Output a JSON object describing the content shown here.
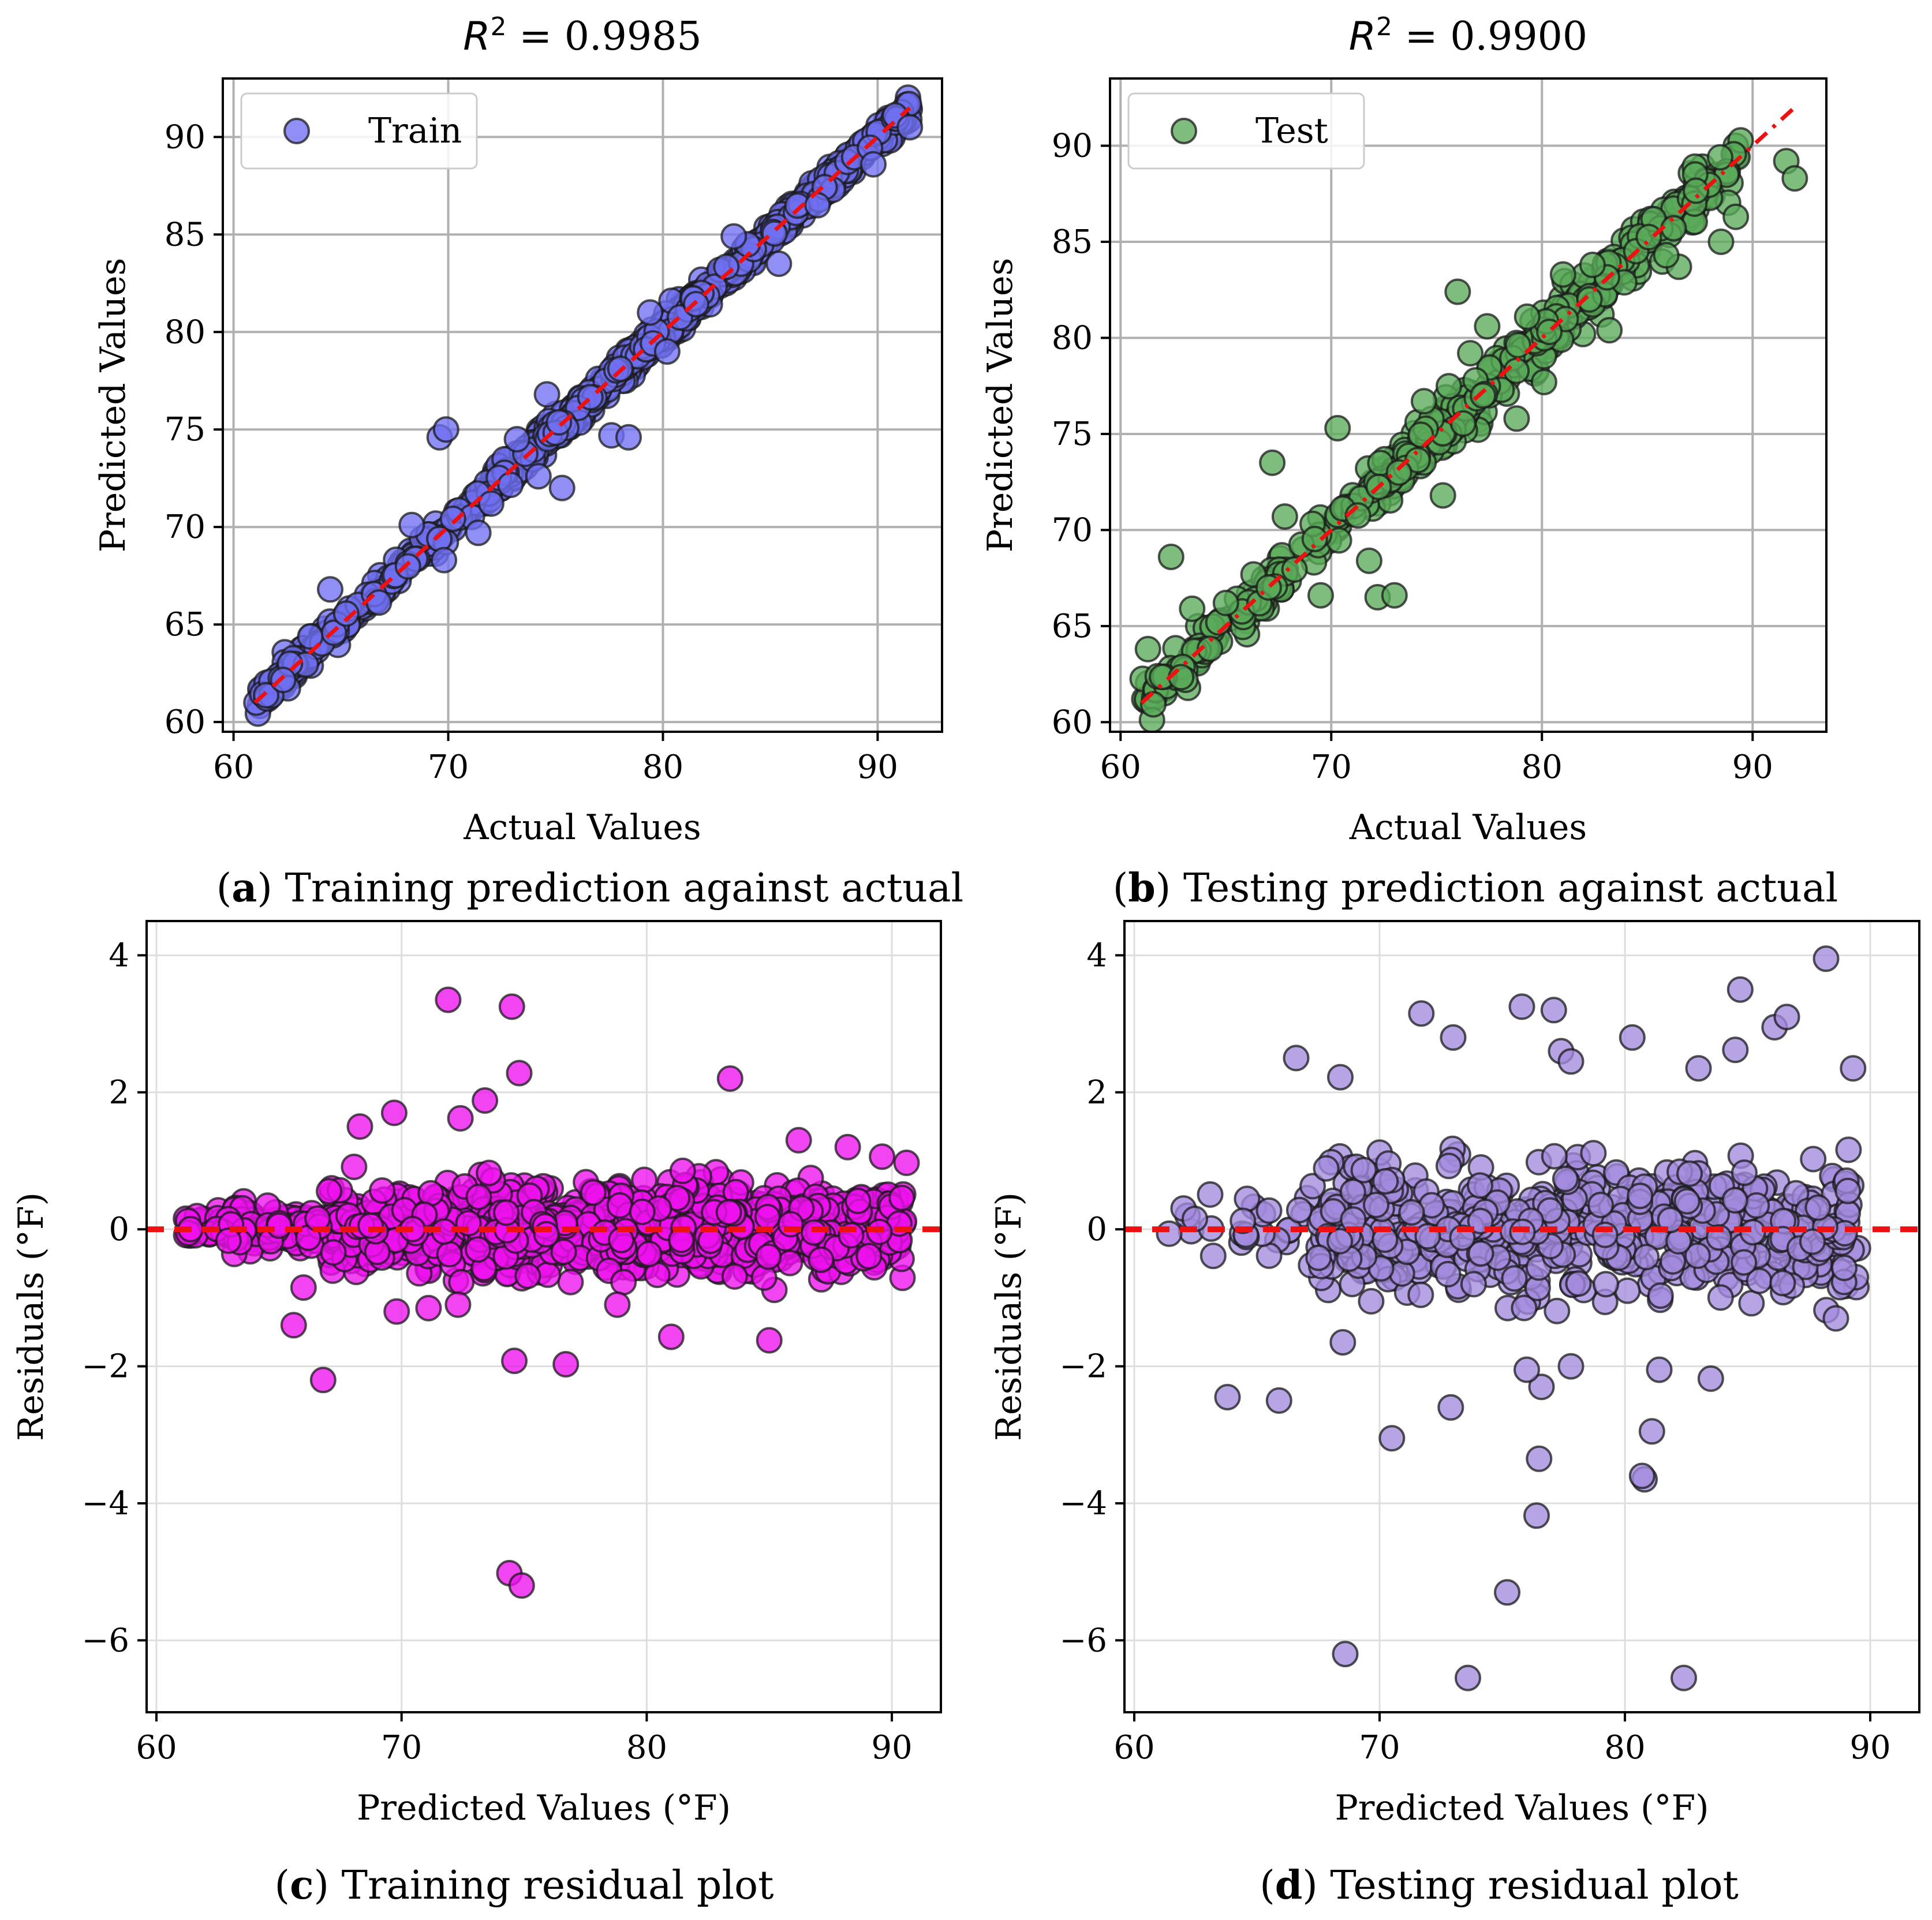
{
  "chart_data": [
    {
      "id": "a",
      "type": "scatter",
      "title": "R² = 0.9985",
      "title_prefix": "R",
      "title_suffix": " = 0.9985",
      "xlabel": "Actual Values",
      "ylabel": "Predicted Values",
      "xlim": [
        59.5,
        93
      ],
      "ylim": [
        59.5,
        93
      ],
      "xticks": [
        60,
        70,
        80,
        90
      ],
      "yticks": [
        60,
        65,
        70,
        75,
        80,
        85,
        90
      ],
      "grid": true,
      "legend": {
        "placement": "upper-left",
        "label": "Train"
      },
      "caption_letter": "a",
      "caption_text": " Training prediction against actual",
      "marker_color": "#6f6ff2",
      "series": [
        {
          "name": "Train",
          "mode": "parity",
          "seed": 11,
          "n": 950,
          "x_range": [
            61,
            91.5
          ],
          "noise": 0.32,
          "outliers": [
            [
              69.6,
              74.6
            ],
            [
              69.9,
              75
            ],
            [
              74.6,
              76.8
            ],
            [
              75.3,
              72
            ],
            [
              77.6,
              74.7
            ],
            [
              78.4,
              74.6
            ],
            [
              64.5,
              66.8
            ],
            [
              71.4,
              69.7
            ],
            [
              69.8,
              68.3
            ],
            [
              68.3,
              70.1
            ],
            [
              89.8,
              88.6
            ],
            [
              91.5,
              90.5
            ],
            [
              83.3,
              84.9
            ],
            [
              85.4,
              83.5
            ],
            [
              87.2,
              86.5
            ],
            [
              79.4,
              81
            ],
            [
              80.2,
              79
            ],
            [
              74.2,
              72.6
            ],
            [
              73.2,
              74.5
            ],
            [
              72,
              71.2
            ]
          ]
        }
      ],
      "reference_line": {
        "style": "dashed",
        "color": "#ee1111",
        "from": [
          61,
          61
        ],
        "to": [
          91.5,
          91.5
        ]
      }
    },
    {
      "id": "b",
      "type": "scatter",
      "title": "R² = 0.9900",
      "title_prefix": "R",
      "title_suffix": " = 0.9900",
      "xlabel": "Actual Values",
      "ylabel": "Predicted Values",
      "xlim": [
        59.5,
        93.5
      ],
      "ylim": [
        59.5,
        93.5
      ],
      "xticks": [
        60,
        70,
        80,
        90
      ],
      "yticks": [
        60,
        65,
        70,
        75,
        80,
        85,
        90
      ],
      "grid": true,
      "legend": {
        "placement": "upper-left",
        "label": "Test"
      },
      "caption_letter": "b",
      "caption_text": " Testing prediction against actual",
      "marker_color": "#5aaa5a",
      "series": [
        {
          "name": "Test",
          "mode": "parity",
          "seed": 23,
          "n": 520,
          "x_range": [
            61,
            89.5
          ],
          "noise": 0.6,
          "outliers": [
            [
              61.3,
              63.8
            ],
            [
              62.4,
              68.6
            ],
            [
              63.4,
              65.9
            ],
            [
              65,
              66.2
            ],
            [
              67.2,
              73.5
            ],
            [
              67.8,
              70.7
            ],
            [
              69.5,
              66.6
            ],
            [
              70.3,
              75.3
            ],
            [
              71.8,
              68.4
            ],
            [
              72.2,
              66.5
            ],
            [
              73,
              66.6
            ],
            [
              75.3,
              71.8
            ],
            [
              76,
              82.4
            ],
            [
              77.2,
              77
            ],
            [
              78.8,
              75.8
            ],
            [
              83.2,
              80.4
            ],
            [
              86.5,
              83.7
            ],
            [
              88.5,
              85
            ],
            [
              89.2,
              86.3
            ],
            [
              91.6,
              89.2
            ],
            [
              92,
              88.3
            ],
            [
              76.6,
              79.2
            ],
            [
              79.3,
              81.1
            ],
            [
              81,
              83.3
            ],
            [
              82.4,
              83.8
            ],
            [
              85.9,
              84.3
            ],
            [
              74.4,
              76.7
            ],
            [
              77.4,
              80.6
            ],
            [
              80.1,
              77.7
            ]
          ]
        }
      ],
      "reference_line": {
        "style": "dashdot",
        "color": "#ee1111",
        "from": [
          61,
          61
        ],
        "to": [
          92,
          92
        ]
      }
    },
    {
      "id": "c",
      "type": "scatter",
      "title": "",
      "xlabel": "Predicted Values (°F)",
      "ylabel": "Residuals (°F)",
      "xlim": [
        59.6,
        92
      ],
      "ylim": [
        -7.05,
        4.5
      ],
      "xticks": [
        60,
        70,
        80,
        90
      ],
      "yticks": [
        -6,
        -4,
        -2,
        0,
        2,
        4
      ],
      "grid": true,
      "caption_letter": "c",
      "caption_text": " Training residual plot",
      "marker_color": "#ee11ee",
      "series": [
        {
          "name": "",
          "mode": "residual",
          "seed": 37,
          "n": 1150,
          "x_range": [
            61,
            90.5
          ],
          "noise": 0.3,
          "outliers": [
            [
              71.9,
              3.35
            ],
            [
              74.5,
              3.25
            ],
            [
              74.8,
              2.28
            ],
            [
              73.4,
              1.88
            ],
            [
              72.4,
              1.62
            ],
            [
              69.7,
              1.7
            ],
            [
              68.3,
              1.5
            ],
            [
              83.4,
              2.2
            ],
            [
              86.2,
              1.3
            ],
            [
              88.2,
              1.2
            ],
            [
              89.6,
              1.06
            ],
            [
              90.6,
              0.97
            ],
            [
              66.8,
              -2.2
            ],
            [
              65.6,
              -1.4
            ],
            [
              66,
              -0.85
            ],
            [
              74.6,
              -1.92
            ],
            [
              76.7,
              -1.97
            ],
            [
              81,
              -1.57
            ],
            [
              85,
              -1.62
            ],
            [
              74.4,
              -5.02
            ],
            [
              74.9,
              -5.2
            ],
            [
              69.8,
              -1.2
            ],
            [
              71.1,
              -1.15
            ],
            [
              72.3,
              -1.1
            ],
            [
              78.8,
              -1.1
            ]
          ]
        }
      ],
      "reference_line": {
        "style": "dashed",
        "color": "#ee1111",
        "y": 0
      }
    },
    {
      "id": "d",
      "type": "scatter",
      "title": "",
      "xlabel": "Predicted Values (°F)",
      "ylabel": "Residuals (°F)",
      "xlim": [
        59.6,
        92
      ],
      "ylim": [
        -7.05,
        4.5
      ],
      "xticks": [
        60,
        70,
        80,
        90
      ],
      "yticks": [
        -6,
        -4,
        -2,
        0,
        2,
        4
      ],
      "grid": true,
      "caption_letter": "d",
      "caption_text": " Testing residual plot",
      "marker_color": "#a38ade",
      "series": [
        {
          "name": "",
          "mode": "residual",
          "seed": 53,
          "n": 650,
          "x_range": [
            61,
            89.5
          ],
          "noise": 0.5,
          "outliers": [
            [
              66.6,
              2.5
            ],
            [
              68.4,
              2.22
            ],
            [
              71.7,
              3.15
            ],
            [
              73,
              2.8
            ],
            [
              75.8,
              3.25
            ],
            [
              77.1,
              3.2
            ],
            [
              77.4,
              2.6
            ],
            [
              77.8,
              2.45
            ],
            [
              80.3,
              2.8
            ],
            [
              83,
              2.35
            ],
            [
              84.5,
              2.62
            ],
            [
              84.7,
              3.5
            ],
            [
              86.1,
              2.95
            ],
            [
              86.6,
              3.1
            ],
            [
              88.2,
              3.95
            ],
            [
              89.3,
              2.35
            ],
            [
              63.8,
              -2.45
            ],
            [
              65.9,
              -2.5
            ],
            [
              68.5,
              -1.65
            ],
            [
              70.5,
              -3.05
            ],
            [
              72.9,
              -2.6
            ],
            [
              73.6,
              -6.55
            ],
            [
              75.2,
              -5.3
            ],
            [
              76.4,
              -4.18
            ],
            [
              76.5,
              -3.35
            ],
            [
              76.6,
              -2.3
            ],
            [
              76,
              -2.05
            ],
            [
              77.8,
              -2.0
            ],
            [
              80.8,
              -3.65
            ],
            [
              81.1,
              -2.95
            ],
            [
              81.4,
              -2.05
            ],
            [
              82.4,
              -6.55
            ],
            [
              68.6,
              -6.2
            ],
            [
              83.5,
              -2.18
            ],
            [
              88.6,
              -1.3
            ],
            [
              80.7,
              -3.6
            ]
          ]
        }
      ],
      "reference_line": {
        "style": "dashed",
        "color": "#ee1111",
        "y": 0
      }
    }
  ]
}
